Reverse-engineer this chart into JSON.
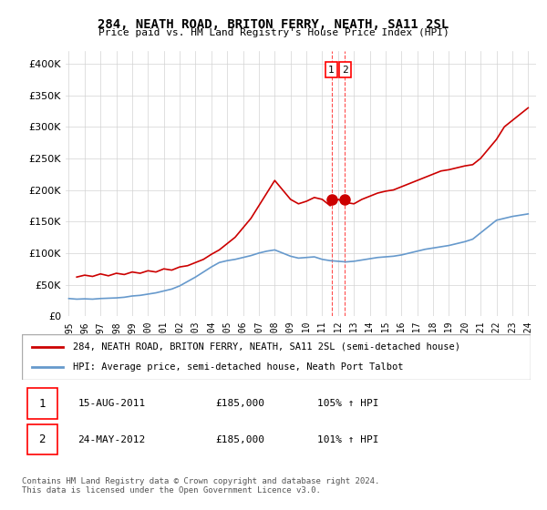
{
  "title": "284, NEATH ROAD, BRITON FERRY, NEATH, SA11 2SL",
  "subtitle": "Price paid vs. HM Land Registry's House Price Index (HPI)",
  "legend_line1": "284, NEATH ROAD, BRITON FERRY, NEATH, SA11 2SL (semi-detached house)",
  "legend_line2": "HPI: Average price, semi-detached house, Neath Port Talbot",
  "footnote": "Contains HM Land Registry data © Crown copyright and database right 2024.\nThis data is licensed under the Open Government Licence v3.0.",
  "annotation1": [
    "1",
    "15-AUG-2011",
    "£185,000",
    "105% ↑ HPI"
  ],
  "annotation2": [
    "2",
    "24-MAY-2012",
    "£185,000",
    "101% ↑ HPI"
  ],
  "red_color": "#cc0000",
  "blue_color": "#6699cc",
  "marker_color": "#cc0000",
  "red_x": [
    1995.5,
    1996.0,
    1996.5,
    1997.0,
    1997.5,
    1998.0,
    1998.5,
    1999.0,
    1999.5,
    2000.0,
    2000.5,
    2001.0,
    2001.5,
    2002.0,
    2002.5,
    2003.0,
    2003.5,
    2004.0,
    2004.5,
    2005.0,
    2005.5,
    2006.0,
    2006.5,
    2007.0,
    2007.5,
    2008.0,
    2008.5,
    2009.0,
    2009.5,
    2010.0,
    2010.5,
    2011.0,
    2011.5,
    2012.0,
    2012.5,
    2013.0,
    2013.5,
    2014.0,
    2014.5,
    2015.0,
    2015.5,
    2016.0,
    2016.5,
    2017.0,
    2017.5,
    2018.0,
    2018.5,
    2019.0,
    2019.5,
    2020.0,
    2020.5,
    2021.0,
    2021.5,
    2022.0,
    2022.5,
    2023.0,
    2023.5,
    2024.0
  ],
  "red_y": [
    62000,
    65000,
    63000,
    67000,
    64000,
    68000,
    66000,
    70000,
    68000,
    72000,
    70000,
    75000,
    73000,
    78000,
    80000,
    85000,
    90000,
    98000,
    105000,
    115000,
    125000,
    140000,
    155000,
    175000,
    195000,
    215000,
    200000,
    185000,
    178000,
    182000,
    188000,
    185000,
    175000,
    185000,
    180000,
    178000,
    185000,
    190000,
    195000,
    198000,
    200000,
    205000,
    210000,
    215000,
    220000,
    225000,
    230000,
    232000,
    235000,
    238000,
    240000,
    250000,
    265000,
    280000,
    300000,
    310000,
    320000,
    330000
  ],
  "blue_x": [
    1995.0,
    1995.5,
    1996.0,
    1996.5,
    1997.0,
    1997.5,
    1998.0,
    1998.5,
    1999.0,
    1999.5,
    2000.0,
    2000.5,
    2001.0,
    2001.5,
    2002.0,
    2002.5,
    2003.0,
    2003.5,
    2004.0,
    2004.5,
    2005.0,
    2005.5,
    2006.0,
    2006.5,
    2007.0,
    2007.5,
    2008.0,
    2008.5,
    2009.0,
    2009.5,
    2010.0,
    2010.5,
    2011.0,
    2011.5,
    2012.0,
    2012.5,
    2013.0,
    2013.5,
    2014.0,
    2014.5,
    2015.0,
    2015.5,
    2016.0,
    2016.5,
    2017.0,
    2017.5,
    2018.0,
    2018.5,
    2019.0,
    2019.5,
    2020.0,
    2020.5,
    2021.0,
    2021.5,
    2022.0,
    2022.5,
    2023.0,
    2023.5,
    2024.0
  ],
  "blue_y": [
    28000,
    27000,
    27500,
    27000,
    28000,
    28500,
    29000,
    30000,
    32000,
    33000,
    35000,
    37000,
    40000,
    43000,
    48000,
    55000,
    62000,
    70000,
    78000,
    85000,
    88000,
    90000,
    93000,
    96000,
    100000,
    103000,
    105000,
    100000,
    95000,
    92000,
    93000,
    94000,
    90000,
    88000,
    87000,
    86000,
    87000,
    89000,
    91000,
    93000,
    94000,
    95000,
    97000,
    100000,
    103000,
    106000,
    108000,
    110000,
    112000,
    115000,
    118000,
    122000,
    132000,
    142000,
    152000,
    155000,
    158000,
    160000,
    162000
  ],
  "marker1_x": 2011.625,
  "marker1_y": 185000,
  "marker2_x": 2012.4,
  "marker2_y": 185000,
  "vline1_x": 2011.625,
  "vline2_x": 2012.4,
  "xlim": [
    1994.8,
    2024.5
  ],
  "ylim": [
    0,
    420000
  ],
  "yticks": [
    0,
    50000,
    100000,
    150000,
    200000,
    250000,
    300000,
    350000,
    400000
  ],
  "ytick_labels": [
    "£0",
    "£50K",
    "£100K",
    "£150K",
    "£200K",
    "£250K",
    "£300K",
    "£350K",
    "£400K"
  ],
  "xticks": [
    1995,
    1996,
    1997,
    1998,
    1999,
    2000,
    2001,
    2002,
    2003,
    2004,
    2005,
    2006,
    2007,
    2008,
    2009,
    2010,
    2011,
    2012,
    2013,
    2014,
    2015,
    2016,
    2017,
    2018,
    2019,
    2020,
    2021,
    2022,
    2023,
    2024
  ]
}
